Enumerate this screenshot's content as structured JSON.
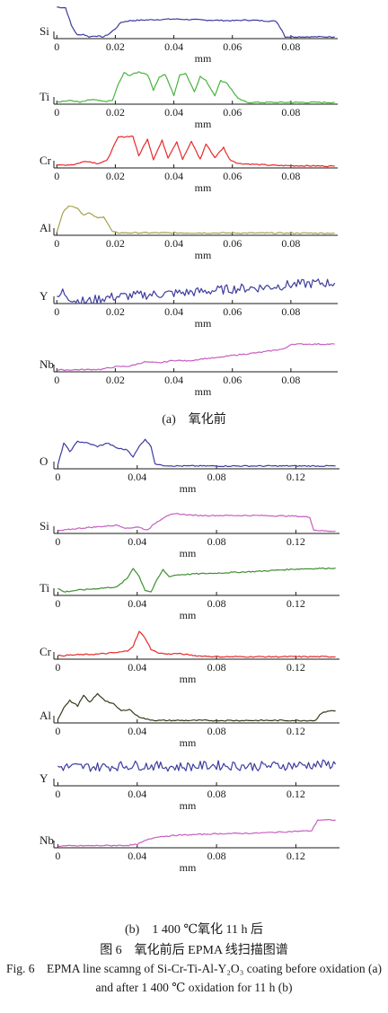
{
  "chart_data": [
    {
      "type": "line",
      "series": [
        {
          "name": "Si",
          "color": "#3d3d9e",
          "values": [
            [
              0,
              0.92
            ],
            [
              0.003,
              0.9
            ],
            [
              0.005,
              0.35
            ],
            [
              0.007,
              0.05
            ],
            [
              0.009,
              0.08
            ],
            [
              0.011,
              0.0
            ],
            [
              0.013,
              0.03
            ],
            [
              0.016,
              0.0
            ],
            [
              0.018,
              0.1
            ],
            [
              0.02,
              0.25
            ],
            [
              0.022,
              0.45
            ],
            [
              0.025,
              0.5
            ],
            [
              0.03,
              0.52
            ],
            [
              0.04,
              0.55
            ],
            [
              0.05,
              0.52
            ],
            [
              0.06,
              0.5
            ],
            [
              0.065,
              0.52
            ],
            [
              0.07,
              0.5
            ],
            [
              0.075,
              0.48
            ],
            [
              0.077,
              0.2
            ],
            [
              0.078,
              0.0
            ],
            [
              0.095,
              0.0
            ]
          ]
        }
      ],
      "xticks": [
        0,
        0.02,
        0.04,
        0.06,
        0.08
      ],
      "xlim": [
        -0.001,
        0.096
      ],
      "xlabel": "mm"
    },
    {
      "type": "line",
      "series": [
        {
          "name": "Ti",
          "color": "#49b23f",
          "values": [
            [
              0,
              0.02
            ],
            [
              0.005,
              0.05
            ],
            [
              0.008,
              0.0
            ],
            [
              0.012,
              0.08
            ],
            [
              0.016,
              0.02
            ],
            [
              0.019,
              0.05
            ],
            [
              0.021,
              0.5
            ],
            [
              0.023,
              0.82
            ],
            [
              0.025,
              0.75
            ],
            [
              0.028,
              0.85
            ],
            [
              0.031,
              0.78
            ],
            [
              0.033,
              0.35
            ],
            [
              0.035,
              0.7
            ],
            [
              0.037,
              0.78
            ],
            [
              0.04,
              0.2
            ],
            [
              0.042,
              0.75
            ],
            [
              0.044,
              0.82
            ],
            [
              0.047,
              0.3
            ],
            [
              0.049,
              0.72
            ],
            [
              0.051,
              0.6
            ],
            [
              0.054,
              0.2
            ],
            [
              0.056,
              0.6
            ],
            [
              0.058,
              0.55
            ],
            [
              0.062,
              0.1
            ],
            [
              0.065,
              0.0
            ],
            [
              0.095,
              0.0
            ]
          ]
        }
      ],
      "xticks": [
        0,
        0.02,
        0.04,
        0.06,
        0.08
      ],
      "xlim": [
        -0.001,
        0.096
      ],
      "xlabel": "mm"
    },
    {
      "type": "line",
      "series": [
        {
          "name": "Cr",
          "color": "#e82a2a",
          "values": [
            [
              0,
              0.02
            ],
            [
              0.006,
              0.05
            ],
            [
              0.01,
              0.15
            ],
            [
              0.014,
              0.08
            ],
            [
              0.017,
              0.15
            ],
            [
              0.019,
              0.5
            ],
            [
              0.021,
              0.85
            ],
            [
              0.026,
              0.88
            ],
            [
              0.028,
              0.3
            ],
            [
              0.031,
              0.8
            ],
            [
              0.033,
              0.2
            ],
            [
              0.036,
              0.75
            ],
            [
              0.038,
              0.25
            ],
            [
              0.041,
              0.72
            ],
            [
              0.043,
              0.2
            ],
            [
              0.046,
              0.72
            ],
            [
              0.049,
              0.2
            ],
            [
              0.051,
              0.65
            ],
            [
              0.054,
              0.25
            ],
            [
              0.057,
              0.55
            ],
            [
              0.059,
              0.2
            ],
            [
              0.062,
              0.08
            ],
            [
              0.068,
              0.05
            ],
            [
              0.075,
              0.02
            ],
            [
              0.095,
              0.0
            ]
          ]
        }
      ],
      "xticks": [
        0,
        0.02,
        0.04,
        0.06,
        0.08
      ],
      "xlim": [
        -0.001,
        0.096
      ],
      "xlabel": "mm"
    },
    {
      "type": "line",
      "series": [
        {
          "name": "Al",
          "color": "#a6a24a",
          "values": [
            [
              0,
              0.05
            ],
            [
              0.002,
              0.6
            ],
            [
              0.004,
              0.82
            ],
            [
              0.007,
              0.75
            ],
            [
              0.009,
              0.55
            ],
            [
              0.011,
              0.6
            ],
            [
              0.014,
              0.45
            ],
            [
              0.016,
              0.5
            ],
            [
              0.018,
              0.2
            ],
            [
              0.019,
              0.05
            ],
            [
              0.021,
              0.02
            ],
            [
              0.095,
              0.01
            ]
          ]
        }
      ],
      "xticks": [
        0,
        0.02,
        0.04,
        0.06,
        0.08
      ],
      "xlim": [
        -0.001,
        0.096
      ],
      "xlabel": "mm"
    },
    {
      "type": "line",
      "series": [
        {
          "name": "Y",
          "color": "#3d3d9e",
          "values": [
            [
              0,
              0.05
            ],
            [
              0.002,
              0.3
            ],
            [
              0.004,
              0.15
            ],
            [
              0.006,
              0.05
            ],
            [
              0.01,
              0.0
            ],
            [
              0.015,
              0.1
            ],
            [
              0.02,
              0.15
            ],
            [
              0.03,
              0.2
            ],
            [
              0.04,
              0.25
            ],
            [
              0.05,
              0.3
            ],
            [
              0.06,
              0.38
            ],
            [
              0.07,
              0.42
            ],
            [
              0.08,
              0.5
            ],
            [
              0.09,
              0.55
            ],
            [
              0.095,
              0.55
            ]
          ]
        }
      ],
      "xticks": [
        0,
        0.02,
        0.04,
        0.06,
        0.08
      ],
      "xlim": [
        -0.001,
        0.096
      ],
      "xlabel": "mm"
    },
    {
      "type": "line",
      "series": [
        {
          "name": "Nb",
          "color": "#c85ec0",
          "values": [
            [
              0,
              0.0
            ],
            [
              0.015,
              0.02
            ],
            [
              0.02,
              0.1
            ],
            [
              0.025,
              0.12
            ],
            [
              0.03,
              0.25
            ],
            [
              0.035,
              0.22
            ],
            [
              0.04,
              0.3
            ],
            [
              0.045,
              0.28
            ],
            [
              0.05,
              0.35
            ],
            [
              0.055,
              0.38
            ],
            [
              0.06,
              0.45
            ],
            [
              0.065,
              0.5
            ],
            [
              0.07,
              0.55
            ],
            [
              0.075,
              0.62
            ],
            [
              0.078,
              0.66
            ],
            [
              0.08,
              0.8
            ],
            [
              0.095,
              0.8
            ]
          ]
        }
      ],
      "xticks": [
        0,
        0.02,
        0.04,
        0.06,
        0.08
      ],
      "xlim": [
        -0.001,
        0.096
      ],
      "xlabel": "mm"
    },
    {
      "type": "line",
      "series": [
        {
          "name": "O",
          "color": "#3d3d9e",
          "values": [
            [
              0,
              0.05
            ],
            [
              0.003,
              0.7
            ],
            [
              0.006,
              0.45
            ],
            [
              0.01,
              0.75
            ],
            [
              0.015,
              0.7
            ],
            [
              0.02,
              0.6
            ],
            [
              0.025,
              0.7
            ],
            [
              0.03,
              0.55
            ],
            [
              0.035,
              0.5
            ],
            [
              0.038,
              0.3
            ],
            [
              0.041,
              0.6
            ],
            [
              0.044,
              0.82
            ],
            [
              0.047,
              0.6
            ],
            [
              0.049,
              0.1
            ],
            [
              0.052,
              0.05
            ],
            [
              0.06,
              0.03
            ],
            [
              0.1,
              0.03
            ],
            [
              0.14,
              0.03
            ]
          ]
        }
      ],
      "xticks": [
        0,
        0.04,
        0.08,
        0.12
      ],
      "xlim": [
        -0.002,
        0.142
      ],
      "xlabel": "mm"
    },
    {
      "type": "line",
      "series": [
        {
          "name": "Si",
          "color": "#c85ec0",
          "values": [
            [
              0,
              0.02
            ],
            [
              0.01,
              0.1
            ],
            [
              0.02,
              0.15
            ],
            [
              0.03,
              0.2
            ],
            [
              0.035,
              0.1
            ],
            [
              0.04,
              0.15
            ],
            [
              0.045,
              0.05
            ],
            [
              0.05,
              0.3
            ],
            [
              0.055,
              0.5
            ],
            [
              0.06,
              0.55
            ],
            [
              0.07,
              0.5
            ],
            [
              0.08,
              0.5
            ],
            [
              0.1,
              0.5
            ],
            [
              0.12,
              0.48
            ],
            [
              0.127,
              0.45
            ],
            [
              0.129,
              0.05
            ],
            [
              0.135,
              0.02
            ],
            [
              0.14,
              0.02
            ]
          ]
        }
      ],
      "xticks": [
        0,
        0.04,
        0.08,
        0.12
      ],
      "xlim": [
        -0.002,
        0.142
      ],
      "xlabel": "mm"
    },
    {
      "type": "line",
      "series": [
        {
          "name": "Ti",
          "color": "#3f8f31",
          "values": [
            [
              0,
              0.15
            ],
            [
              0.003,
              0.05
            ],
            [
              0.01,
              0.1
            ],
            [
              0.02,
              0.15
            ],
            [
              0.03,
              0.2
            ],
            [
              0.035,
              0.45
            ],
            [
              0.038,
              0.75
            ],
            [
              0.041,
              0.5
            ],
            [
              0.044,
              0.1
            ],
            [
              0.047,
              0.05
            ],
            [
              0.05,
              0.4
            ],
            [
              0.053,
              0.7
            ],
            [
              0.056,
              0.5
            ],
            [
              0.06,
              0.55
            ],
            [
              0.07,
              0.58
            ],
            [
              0.08,
              0.6
            ],
            [
              0.1,
              0.65
            ],
            [
              0.12,
              0.72
            ],
            [
              0.14,
              0.75
            ]
          ]
        }
      ],
      "xticks": [
        0,
        0.04,
        0.08,
        0.12
      ],
      "xlim": [
        -0.002,
        0.142
      ],
      "xlabel": "mm"
    },
    {
      "type": "line",
      "series": [
        {
          "name": "Cr",
          "color": "#e82a2a",
          "values": [
            [
              0,
              0.05
            ],
            [
              0.01,
              0.08
            ],
            [
              0.02,
              0.1
            ],
            [
              0.03,
              0.15
            ],
            [
              0.035,
              0.2
            ],
            [
              0.038,
              0.35
            ],
            [
              0.041,
              0.8
            ],
            [
              0.044,
              0.6
            ],
            [
              0.047,
              0.25
            ],
            [
              0.05,
              0.15
            ],
            [
              0.055,
              0.1
            ],
            [
              0.06,
              0.12
            ],
            [
              0.07,
              0.05
            ],
            [
              0.08,
              0.02
            ],
            [
              0.14,
              0.02
            ]
          ]
        }
      ],
      "xticks": [
        0,
        0.04,
        0.08,
        0.12
      ],
      "xlim": [
        -0.002,
        0.142
      ],
      "xlabel": "mm"
    },
    {
      "type": "line",
      "series": [
        {
          "name": "Al",
          "color": "#3a3a1e",
          "values": [
            [
              0,
              0.05
            ],
            [
              0.003,
              0.4
            ],
            [
              0.006,
              0.6
            ],
            [
              0.01,
              0.45
            ],
            [
              0.013,
              0.75
            ],
            [
              0.016,
              0.55
            ],
            [
              0.02,
              0.8
            ],
            [
              0.024,
              0.6
            ],
            [
              0.028,
              0.5
            ],
            [
              0.032,
              0.3
            ],
            [
              0.036,
              0.35
            ],
            [
              0.04,
              0.15
            ],
            [
              0.045,
              0.05
            ],
            [
              0.05,
              0.02
            ],
            [
              0.13,
              0.02
            ],
            [
              0.132,
              0.2
            ],
            [
              0.136,
              0.3
            ],
            [
              0.14,
              0.3
            ]
          ]
        }
      ],
      "xticks": [
        0,
        0.04,
        0.08,
        0.12
      ],
      "xlim": [
        -0.002,
        0.142
      ],
      "xlabel": "mm"
    },
    {
      "type": "line",
      "series": [
        {
          "name": "Y",
          "color": "#3d3d9e",
          "values": [
            [
              0,
              0.5
            ],
            [
              0.02,
              0.5
            ],
            [
              0.04,
              0.55
            ],
            [
              0.06,
              0.5
            ],
            [
              0.08,
              0.55
            ],
            [
              0.1,
              0.52
            ],
            [
              0.12,
              0.55
            ],
            [
              0.14,
              0.58
            ]
          ]
        }
      ],
      "xticks": [
        0,
        0.04,
        0.08,
        0.12
      ],
      "xlim": [
        -0.002,
        0.142
      ],
      "xlabel": "mm"
    },
    {
      "type": "line",
      "series": [
        {
          "name": "Nb",
          "color": "#c85ec0",
          "values": [
            [
              0,
              0.0
            ],
            [
              0.035,
              0.02
            ],
            [
              0.04,
              0.05
            ],
            [
              0.045,
              0.2
            ],
            [
              0.05,
              0.3
            ],
            [
              0.06,
              0.35
            ],
            [
              0.08,
              0.4
            ],
            [
              0.1,
              0.42
            ],
            [
              0.12,
              0.48
            ],
            [
              0.128,
              0.5
            ],
            [
              0.131,
              0.85
            ],
            [
              0.14,
              0.85
            ]
          ]
        }
      ],
      "xticks": [
        0,
        0.04,
        0.08,
        0.12
      ],
      "xlim": [
        -0.002,
        0.142
      ],
      "xlabel": "mm"
    }
  ],
  "captions": {
    "panel_a": "(a)　氧化前",
    "panel_b": "(b)　1 400 ℃氧化 11 h 后",
    "figure_zh": "图 6　氧化前后 EPMA 线扫描图谱",
    "figure_en": "Fig. 6　EPMA line scamng of Si-Cr-Ti-Al-Y₂O₃ coating before oxidation (a) and after 1 400 ℃ oxidation for 11 h (b)"
  }
}
